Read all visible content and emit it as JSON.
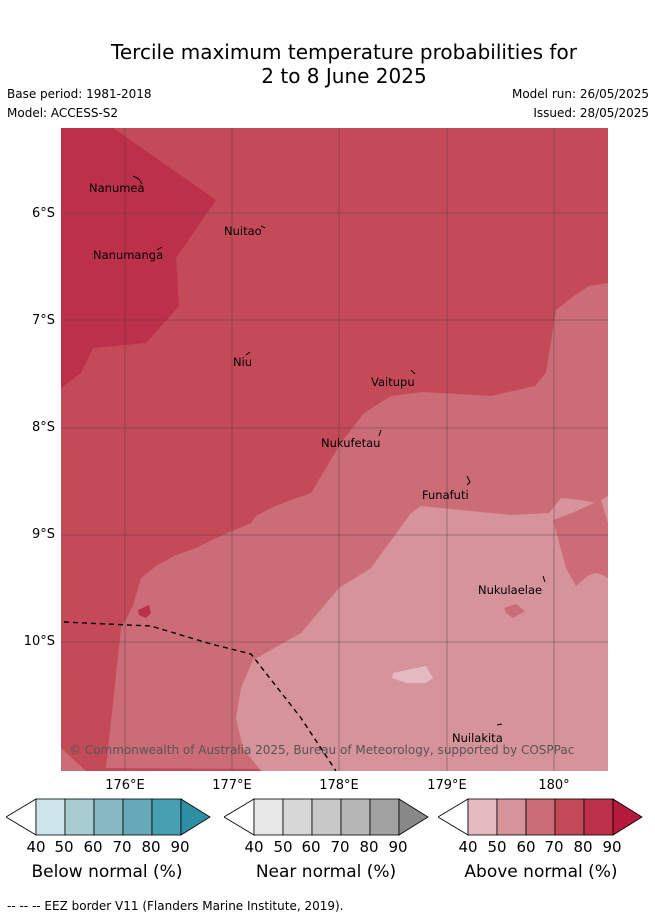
{
  "header": {
    "title_line1": "Tercile maximum temperature probabilities for",
    "title_line2": "2 to 8 June 2025",
    "base_period": "Base period: 1981-2018",
    "model": "Model: ACCESS-S2",
    "model_run": "Model run: 26/05/2025",
    "issued": "Issued: 28/05/2025"
  },
  "map": {
    "lat_labels": [
      "6°S",
      "7°S",
      "8°S",
      "9°S",
      "10°S"
    ],
    "lon_labels": [
      "176°E",
      "177°E",
      "178°E",
      "179°E",
      "180°"
    ],
    "places": [
      "Nanumea",
      "Nuitao",
      "Nanumanga",
      "Niu",
      "Vaitupu",
      "Nukufetau",
      "Funafuti",
      "Nukulaelae",
      "Nuilakita"
    ],
    "credit": "© Commonwealth of Australia 2025, Bureau of Meteorology, supported by COSPPac",
    "colors": {
      "above_40": "#e4b9c0",
      "above_50": "#d7939a",
      "above_60": "#cc6c77",
      "above_70": "#c44a58",
      "above_80": "#bd3049",
      "above_90": "#b5193c"
    }
  },
  "legend": {
    "ticks": [
      "40",
      "50",
      "60",
      "70",
      "80",
      "90"
    ],
    "below": {
      "title": "Below normal (%)",
      "colors": [
        "#ffffff",
        "#cde4ea",
        "#a9cbd2",
        "#88b8c4",
        "#66aab9",
        "#479fb1",
        "#2d8ea4"
      ]
    },
    "near": {
      "title": "Near normal (%)",
      "colors": [
        "#ffffff",
        "#e7e7e7",
        "#d7d7d7",
        "#c8c8c8",
        "#b6b6b6",
        "#a2a2a2",
        "#888888"
      ]
    },
    "above": {
      "title": "Above normal (%)",
      "colors": [
        "#ffffff",
        "#e4b9c0",
        "#d7939a",
        "#cc6c77",
        "#c44a58",
        "#bd3049",
        "#b5193c"
      ]
    }
  },
  "footer": {
    "eez_note": "--  --  -- EEZ border V11 (Flanders Marine Institute, 2019)."
  }
}
